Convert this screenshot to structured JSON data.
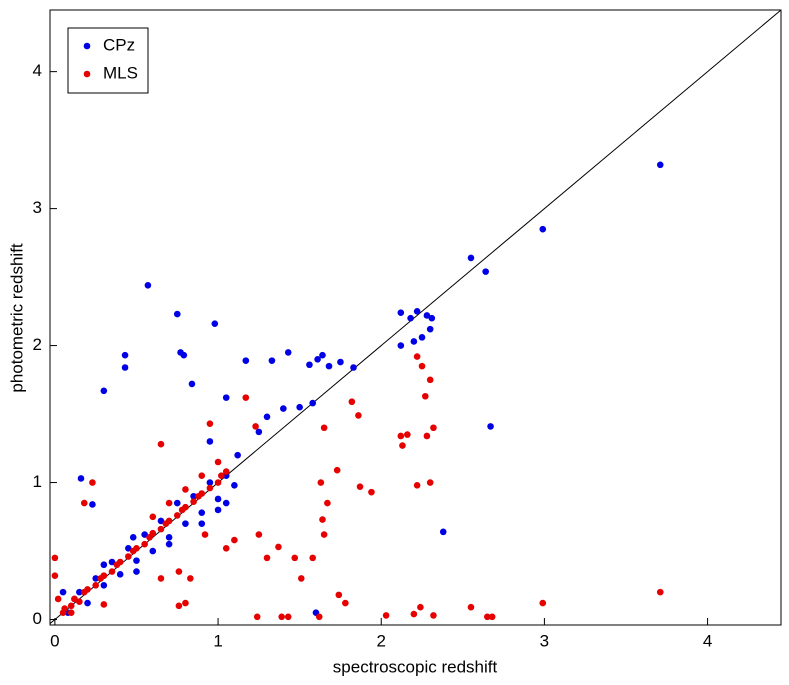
{
  "chart_data": {
    "type": "scatter",
    "x_label": "spectroscopic redshift",
    "y_label": "photometric redshift",
    "xlim": [
      -0.03,
      4.45
    ],
    "ylim": [
      -0.04,
      4.45
    ],
    "xticks": [
      0,
      1,
      2,
      3,
      4
    ],
    "yticks": [
      0,
      1,
      2,
      3,
      4
    ],
    "legend": "upper left",
    "series": [
      {
        "name": "CPz",
        "color": "#0000e6",
        "x": [
          3.71,
          2.99,
          2.55,
          2.64,
          0.57,
          0.75,
          0.98,
          0.77,
          0.79,
          0.43,
          0.43,
          0.84,
          0.3,
          1.17,
          1.33,
          1.43,
          1.56,
          1.61,
          1.64,
          1.68,
          1.75,
          1.83,
          2.12,
          2.18,
          2.22,
          2.28,
          2.31,
          2.3,
          2.2,
          2.12,
          2.25,
          2.67,
          2.38,
          1.5,
          1.58,
          1.4,
          1.3,
          1.25,
          1.05,
          0.95,
          1.12,
          0.16,
          0.23,
          0.48,
          1.05,
          1.6,
          0.05,
          0.08,
          0.12,
          0.15,
          0.2,
          0.25,
          0.3,
          0.35,
          0.4,
          0.45,
          0.5,
          0.55,
          0.6,
          0.65,
          0.7,
          0.75,
          0.8,
          0.85,
          0.9,
          0.95,
          1.0,
          1.05,
          1.1,
          0.3,
          0.5,
          0.7,
          0.9,
          1.0
        ],
        "values": [
          3.32,
          2.85,
          2.64,
          2.54,
          2.44,
          2.23,
          2.16,
          1.95,
          1.93,
          1.93,
          1.84,
          1.72,
          1.67,
          1.89,
          1.89,
          1.95,
          1.86,
          1.9,
          1.93,
          1.85,
          1.88,
          1.84,
          2.24,
          2.2,
          2.25,
          2.22,
          2.2,
          2.12,
          2.03,
          2.0,
          2.06,
          1.41,
          0.64,
          1.55,
          1.58,
          1.54,
          1.48,
          1.37,
          1.62,
          1.3,
          1.2,
          1.03,
          0.84,
          0.6,
          0.85,
          0.05,
          0.2,
          0.05,
          0.15,
          0.2,
          0.12,
          0.3,
          0.25,
          0.42,
          0.33,
          0.52,
          0.43,
          0.62,
          0.5,
          0.72,
          0.6,
          0.85,
          0.7,
          0.9,
          0.78,
          1.0,
          0.88,
          1.05,
          0.98,
          0.4,
          0.35,
          0.55,
          0.7,
          0.8
        ]
      },
      {
        "name": "MLS",
        "color": "#e60000",
        "x": [
          3.71,
          2.99,
          2.55,
          2.65,
          2.68,
          2.2,
          2.24,
          2.32,
          2.03,
          1.24,
          1.39,
          1.43,
          1.62,
          1.74,
          1.78,
          2.27,
          2.3,
          2.32,
          2.28,
          2.12,
          2.16,
          2.22,
          2.3,
          2.13,
          2.25,
          2.22,
          1.86,
          1.82,
          1.94,
          1.87,
          1.73,
          1.65,
          1.63,
          1.67,
          1.64,
          1.65,
          1.58,
          1.51,
          1.47,
          1.37,
          1.3,
          1.25,
          1.1,
          1.05,
          0.92,
          0.76,
          0.83,
          0.65,
          0.8,
          0.76,
          0.3,
          0.3,
          0.0,
          0.0,
          0.02,
          0.1,
          0.18,
          0.23,
          0.65,
          0.95,
          1.23,
          1.17,
          0.06,
          0.05,
          0.1,
          0.12,
          0.15,
          0.18,
          0.2,
          0.25,
          0.28,
          0.3,
          0.35,
          0.38,
          0.4,
          0.45,
          0.48,
          0.5,
          0.55,
          0.58,
          0.6,
          0.65,
          0.68,
          0.7,
          0.75,
          0.78,
          0.8,
          0.85,
          0.88,
          0.9,
          0.95,
          1.0,
          1.02,
          1.05,
          0.6,
          0.7,
          0.8,
          0.9,
          1.0
        ],
        "values": [
          0.2,
          0.12,
          0.09,
          0.02,
          0.02,
          0.04,
          0.09,
          0.03,
          0.03,
          0.02,
          0.02,
          0.02,
          0.02,
          0.18,
          0.12,
          1.63,
          1.75,
          1.4,
          1.34,
          1.34,
          1.35,
          0.98,
          1.0,
          1.27,
          1.85,
          1.92,
          1.49,
          1.59,
          0.93,
          0.97,
          1.09,
          1.4,
          1.0,
          0.85,
          0.73,
          0.62,
          0.45,
          0.3,
          0.45,
          0.53,
          0.45,
          0.62,
          0.58,
          0.52,
          0.62,
          0.35,
          0.3,
          0.3,
          0.12,
          0.1,
          0.32,
          0.11,
          0.45,
          0.32,
          0.15,
          0.05,
          0.85,
          1.0,
          1.28,
          1.43,
          1.41,
          1.62,
          0.08,
          0.05,
          0.1,
          0.15,
          0.13,
          0.2,
          0.22,
          0.25,
          0.3,
          0.32,
          0.35,
          0.4,
          0.42,
          0.46,
          0.5,
          0.52,
          0.55,
          0.6,
          0.63,
          0.66,
          0.7,
          0.72,
          0.76,
          0.8,
          0.82,
          0.86,
          0.9,
          0.92,
          0.96,
          1.0,
          1.05,
          1.08,
          0.75,
          0.85,
          0.95,
          1.05,
          1.15
        ]
      }
    ]
  }
}
